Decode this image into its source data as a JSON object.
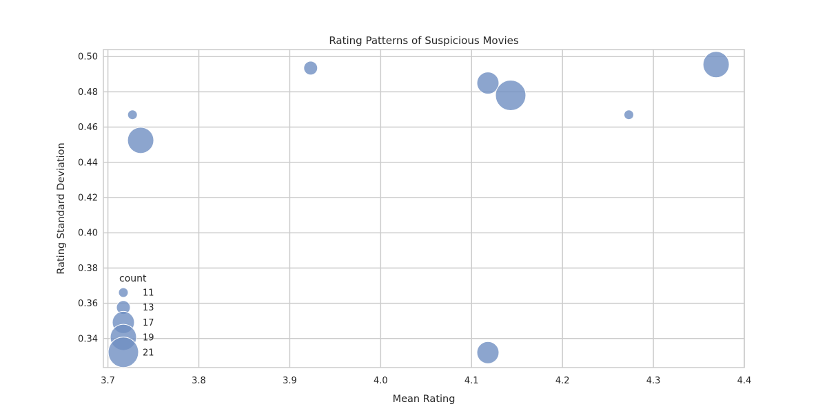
{
  "chart_data": {
    "type": "scatter",
    "title": "Rating Patterns of Suspicious Movies",
    "xlabel": "Mean Rating",
    "ylabel": "Rating Standard Deviation",
    "xlim": [
      3.695,
      4.4
    ],
    "ylim": [
      0.3235,
      0.504
    ],
    "xticks": [
      "3.7",
      "3.8",
      "3.9",
      "4.0",
      "4.1",
      "4.2",
      "4.3",
      "4.4"
    ],
    "yticks": [
      "0.34",
      "0.36",
      "0.38",
      "0.40",
      "0.42",
      "0.44",
      "0.46",
      "0.48",
      "0.50"
    ],
    "grid": true,
    "size_variable": "count",
    "point_color": "#6f8fc2",
    "points": [
      {
        "x": 3.727,
        "y": 0.467,
        "count": 11
      },
      {
        "x": 3.736,
        "y": 0.4525,
        "count": 19
      },
      {
        "x": 3.923,
        "y": 0.4935,
        "count": 13
      },
      {
        "x": 4.118,
        "y": 0.485,
        "count": 17
      },
      {
        "x": 4.143,
        "y": 0.478,
        "count": 21
      },
      {
        "x": 4.118,
        "y": 0.332,
        "count": 17
      },
      {
        "x": 4.273,
        "y": 0.467,
        "count": 11
      },
      {
        "x": 4.369,
        "y": 0.4955,
        "count": 19
      }
    ],
    "legend": {
      "title": "count",
      "placement": "lower-left",
      "entries": [
        "11",
        "13",
        "17",
        "19",
        "21"
      ]
    }
  }
}
